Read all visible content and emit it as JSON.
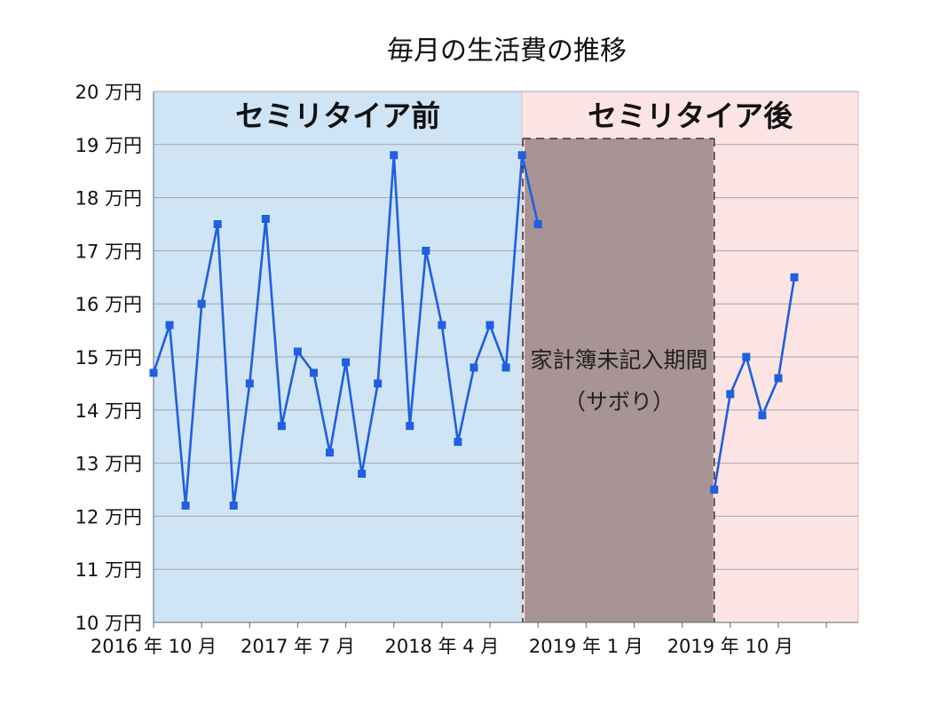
{
  "chart_data": {
    "type": "line",
    "title": "毎月の生活費の推移",
    "xlabel": "",
    "ylabel": "",
    "ylim": [
      10,
      20
    ],
    "ytick_values": [
      10,
      11,
      12,
      13,
      14,
      15,
      16,
      17,
      18,
      19,
      20
    ],
    "ytick_labels": [
      "10 万円",
      "11 万円",
      "12 万円",
      "13 万円",
      "14 万円",
      "15 万円",
      "16 万円",
      "17 万円",
      "18 万円",
      "19 万円",
      "20 万円"
    ],
    "xtick_labels": [
      {
        "label": "2016 年 10 月",
        "date": "2016-10"
      },
      {
        "label": "2017 年 7 月",
        "date": "2017-07"
      },
      {
        "label": "2018 年 4 月",
        "date": "2018-04"
      },
      {
        "label": "2019 年 1 月",
        "date": "2019-01"
      },
      {
        "label": "2019 年 10 月",
        "date": "2019-10"
      }
    ],
    "grid": true,
    "colors": {
      "line": "#1f5fe0",
      "before_band": "#cfe4f5",
      "after_band": "#fde4e4",
      "gap_block": "#a89494",
      "grid": "#a6a6a6"
    },
    "annotations": {
      "before_label": "セミリタイア前",
      "after_label": "セミリタイア後",
      "gap_label_line1": "家計簿未記入期間",
      "gap_label_line2": "（サボり）"
    },
    "regions": {
      "before": {
        "start": "2016-10",
        "end": "2018-09"
      },
      "gap": {
        "start": "2018-09",
        "end": "2019-09"
      },
      "after": {
        "start": "2018-09",
        "end": "2020-02"
      }
    },
    "series": [
      {
        "name": "",
        "segments": [
          [
            {
              "date": "2016-10",
              "value": 14.7
            },
            {
              "date": "2016-11",
              "value": 15.6
            },
            {
              "date": "2016-12",
              "value": 12.2
            },
            {
              "date": "2017-01",
              "value": 16.0
            },
            {
              "date": "2017-02",
              "value": 17.5
            },
            {
              "date": "2017-03",
              "value": 12.2
            },
            {
              "date": "2017-04",
              "value": 14.5
            },
            {
              "date": "2017-05",
              "value": 17.6
            },
            {
              "date": "2017-06",
              "value": 13.7
            },
            {
              "date": "2017-07",
              "value": 15.1
            },
            {
              "date": "2017-08",
              "value": 14.7
            },
            {
              "date": "2017-09",
              "value": 13.2
            },
            {
              "date": "2017-10",
              "value": 14.9
            },
            {
              "date": "2017-11",
              "value": 12.8
            },
            {
              "date": "2017-12",
              "value": 14.5
            },
            {
              "date": "2018-01",
              "value": 18.8
            },
            {
              "date": "2018-02",
              "value": 13.7
            },
            {
              "date": "2018-03",
              "value": 17.0
            },
            {
              "date": "2018-04",
              "value": 15.6
            },
            {
              "date": "2018-05",
              "value": 13.4
            },
            {
              "date": "2018-06",
              "value": 14.8
            },
            {
              "date": "2018-07",
              "value": 15.6
            },
            {
              "date": "2018-08",
              "value": 14.8
            },
            {
              "date": "2018-09",
              "value": 18.8
            },
            {
              "date": "2018-10",
              "value": 17.5
            }
          ],
          [
            {
              "date": "2019-09",
              "value": 12.5
            },
            {
              "date": "2019-10",
              "value": 14.3
            },
            {
              "date": "2019-11",
              "value": 15.0
            },
            {
              "date": "2019-12",
              "value": 13.9
            },
            {
              "date": "2020-01",
              "value": 14.6
            },
            {
              "date": "2020-02",
              "value": 16.5
            }
          ]
        ]
      }
    ]
  }
}
